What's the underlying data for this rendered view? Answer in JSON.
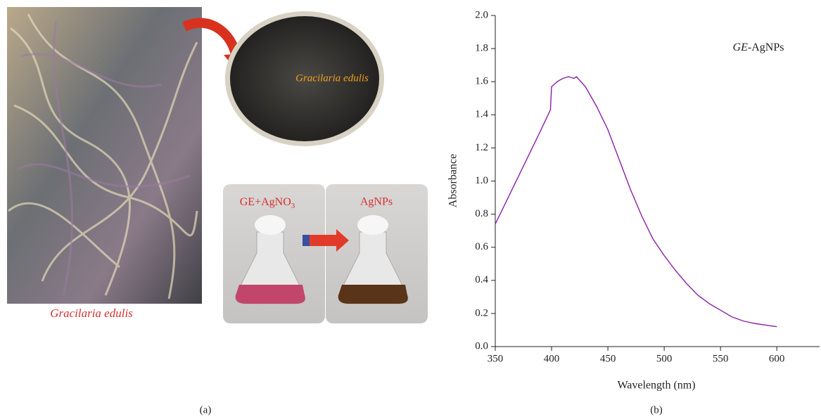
{
  "panel_a": {
    "label": "(a)",
    "photo_caption": "Gracilaria edulis",
    "powder_caption": "Gracilaria edulis",
    "flask_left": {
      "text": "GE+AgNO",
      "subscript": "3"
    },
    "flask_right": "AgNPs"
  },
  "chart_data": {
    "type": "line",
    "panel_label": "(b)",
    "x_label": "Wavelength (nm)",
    "y_label": "Absorbance",
    "annotation": {
      "italic": "GE",
      "text": "-AgNPs"
    },
    "color": "#8b1fa8",
    "x": [
      350,
      360,
      370,
      380,
      390,
      399,
      400,
      405,
      410,
      415,
      420,
      422,
      430,
      440,
      450,
      460,
      470,
      480,
      490,
      500,
      510,
      520,
      530,
      540,
      550,
      560,
      570,
      580,
      590,
      600
    ],
    "values": [
      0.74,
      0.88,
      1.02,
      1.16,
      1.3,
      1.43,
      1.57,
      1.6,
      1.62,
      1.63,
      1.62,
      1.63,
      1.57,
      1.45,
      1.31,
      1.13,
      0.95,
      0.79,
      0.65,
      0.55,
      0.46,
      0.38,
      0.31,
      0.26,
      0.22,
      0.18,
      0.155,
      0.14,
      0.13,
      0.12
    ],
    "xlim": [
      350,
      638
    ],
    "xticks": [
      350,
      400,
      450,
      500,
      550,
      600
    ],
    "ylim": [
      0,
      2
    ],
    "yticks": [
      {
        "value": 0,
        "label": "0.0"
      },
      0.2,
      0.4,
      0.6,
      0.8,
      {
        "value": 1,
        "label": "1.0"
      },
      1.2,
      1.4,
      1.6,
      1.8,
      {
        "value": 2,
        "label": "2.0"
      }
    ]
  }
}
